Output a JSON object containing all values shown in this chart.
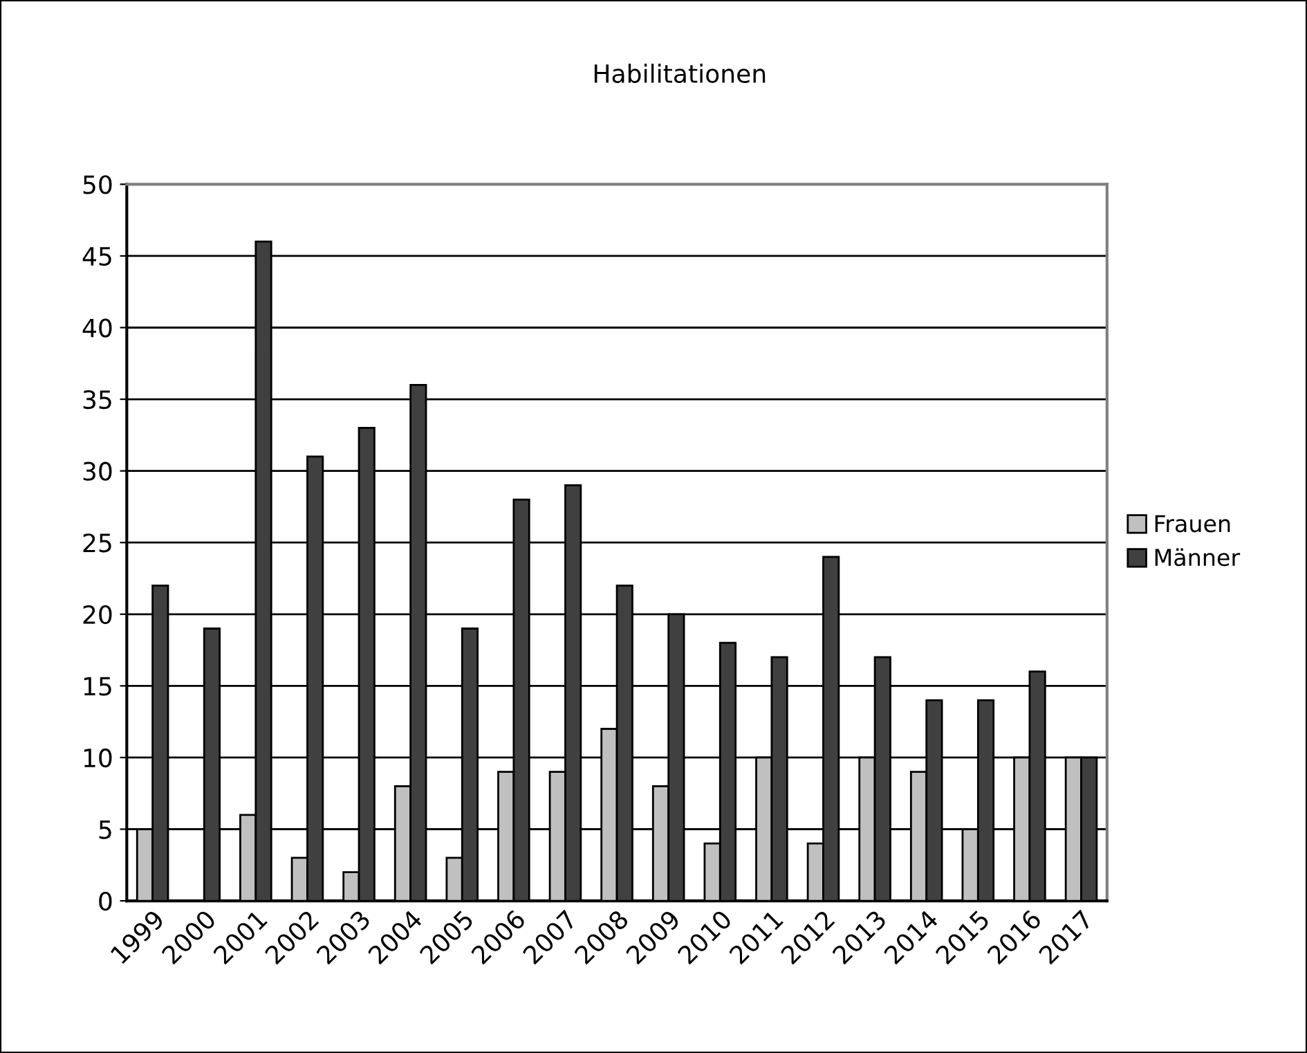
{
  "chart_data": {
    "type": "bar",
    "title": "Habilitationen",
    "categories": [
      "1999",
      "2000",
      "2001",
      "2002",
      "2003",
      "2004",
      "2005",
      "2006",
      "2007",
      "2008",
      "2009",
      "2010",
      "2011",
      "2012",
      "2013",
      "2014",
      "2015",
      "2016",
      "2017"
    ],
    "series": [
      {
        "name": "Frauen",
        "color": "#c0c0c0",
        "values": [
          5,
          null,
          6,
          3,
          2,
          8,
          3,
          9,
          9,
          12,
          8,
          4,
          10,
          4,
          10,
          9,
          5,
          10,
          10
        ]
      },
      {
        "name": "Männer",
        "color": "#404040",
        "values": [
          22,
          19,
          46,
          31,
          33,
          36,
          19,
          28,
          29,
          22,
          20,
          18,
          17,
          24,
          17,
          14,
          14,
          16,
          10
        ]
      }
    ],
    "ylim": [
      0,
      50
    ],
    "yticks": [
      0,
      5,
      10,
      15,
      20,
      25,
      30,
      35,
      40,
      45,
      50
    ],
    "grid": "y",
    "legend": "right"
  }
}
